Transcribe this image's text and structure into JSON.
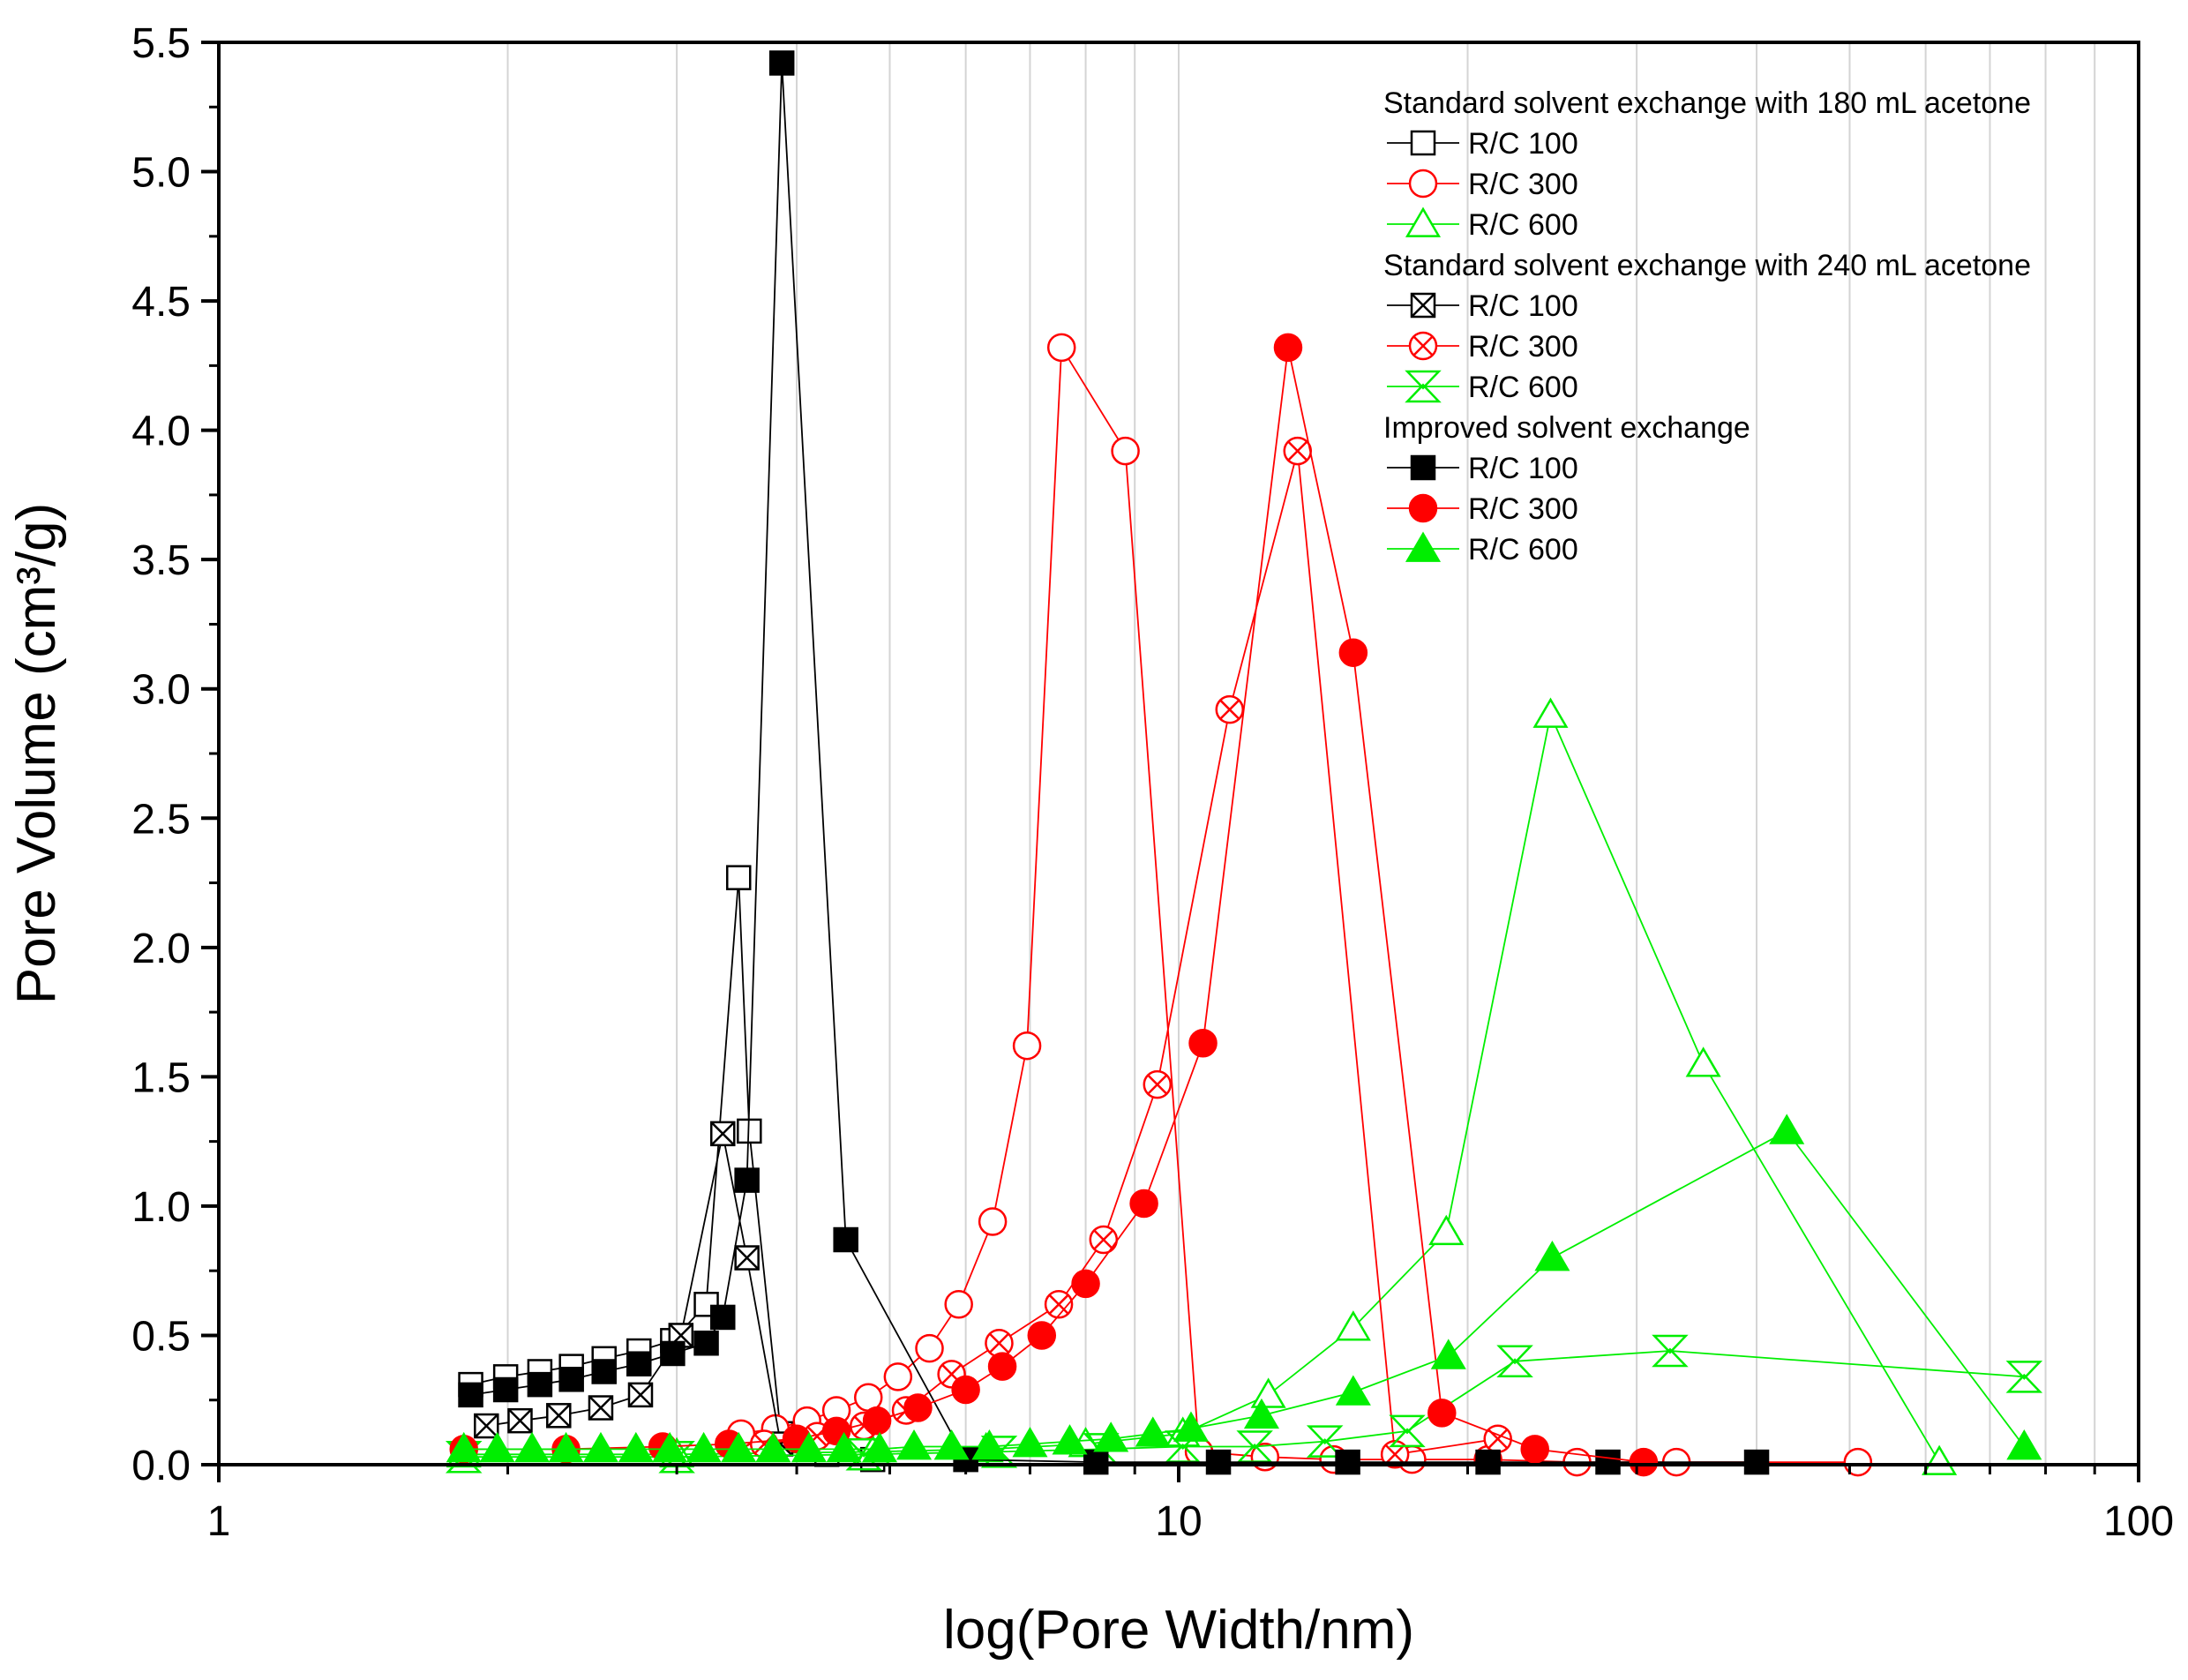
{
  "chart_data": {
    "type": "scatter",
    "title": "",
    "xlabel": "log(Pore Width/nm)",
    "ylabel": "Pore Volume (cm³/g)",
    "xscale": "log",
    "xlim": [
      1,
      100
    ],
    "ylim": [
      0,
      5.5
    ],
    "x_ticks": [
      1,
      10,
      100
    ],
    "x_tick_labels": [
      "1",
      "10",
      "100"
    ],
    "y_ticks": [
      0,
      0.5,
      1.0,
      1.5,
      2.0,
      2.5,
      3.0,
      3.5,
      4.0,
      4.5,
      5.0,
      5.5
    ],
    "y_tick_labels": [
      "0.0",
      "0.5",
      "1.0",
      "1.5",
      "2.0",
      "2.5",
      "3.0",
      "3.5",
      "4.0",
      "4.5",
      "5.0",
      "5.5"
    ],
    "grid": "vertical",
    "legend_position": "top-right",
    "legend_groups": [
      {
        "heading": "Standard solvent exchange with 180 mL acetone",
        "series_names": [
          "std180_rc100",
          "std180_rc300",
          "std180_rc600"
        ]
      },
      {
        "heading": "Standard solvent exchange with 240 mL acetone",
        "series_names": [
          "std240_rc100",
          "std240_rc300",
          "std240_rc600"
        ]
      },
      {
        "heading": "Improved solvent exchange",
        "series_names": [
          "imp_rc100",
          "imp_rc300",
          "imp_rc600"
        ]
      }
    ],
    "series": [
      {
        "name": "std180_rc100",
        "label": "R/C 100",
        "marker": "square-open",
        "color": "#000000",
        "x": [
          1.83,
          1.99,
          2.16,
          2.33,
          2.52,
          2.74,
          2.97,
          3.22,
          3.48,
          3.57,
          3.85,
          4.3,
          4.8
        ],
        "y": [
          0.31,
          0.34,
          0.36,
          0.38,
          0.41,
          0.44,
          0.48,
          0.62,
          2.27,
          1.29,
          0.12,
          0.04,
          0.02
        ]
      },
      {
        "name": "std180_rc300",
        "label": "R/C 300",
        "marker": "circle-open",
        "color": "#ff0000",
        "x": [
          3.5,
          3.8,
          4.1,
          4.4,
          4.75,
          5.1,
          5.5,
          5.9,
          6.4,
          6.95,
          7.55,
          8.8,
          10.5,
          12.3,
          14.5,
          17.5,
          21.0,
          26.0,
          33.0,
          51.0
        ],
        "y": [
          0.12,
          0.14,
          0.17,
          0.21,
          0.26,
          0.34,
          0.45,
          0.62,
          0.94,
          1.62,
          4.32,
          3.92,
          0.05,
          0.03,
          0.02,
          0.02,
          0.02,
          0.01,
          0.01,
          0.01
        ]
      },
      {
        "name": "std180_rc600",
        "label": "R/C 600",
        "marker": "triangle-open",
        "color": "#00ee00",
        "x": [
          1.8,
          3.0,
          4.8,
          6.3,
          8.0,
          10.1,
          12.4,
          15.2,
          19.0,
          24.4,
          35.2,
          62.0
        ],
        "y": [
          0.04,
          0.04,
          0.05,
          0.06,
          0.08,
          0.12,
          0.27,
          0.53,
          0.9,
          2.9,
          1.55,
          0.01
        ]
      },
      {
        "name": "std240_rc100",
        "label": "R/C 100",
        "marker": "square-x",
        "color": "#000000",
        "x": [
          1.9,
          2.06,
          2.26,
          2.5,
          2.75,
          3.03,
          3.35,
          3.55,
          3.85
        ],
        "y": [
          0.15,
          0.17,
          0.19,
          0.22,
          0.27,
          0.5,
          1.28,
          0.8,
          0.08
        ]
      },
      {
        "name": "std240_rc300",
        "label": "R/C 300",
        "marker": "circle-x",
        "color": "#ff0000",
        "x": [
          3.7,
          4.2,
          4.7,
          5.2,
          5.8,
          6.5,
          7.5,
          8.35,
          9.5,
          11.3,
          13.3,
          16.8,
          21.5
        ],
        "y": [
          0.08,
          0.11,
          0.15,
          0.21,
          0.35,
          0.47,
          0.62,
          0.87,
          1.47,
          2.92,
          3.92,
          0.04,
          0.1
        ]
      },
      {
        "name": "std240_rc600",
        "label": "R/C 600",
        "marker": "triangle-x",
        "color": "#00ee00",
        "x": [
          1.8,
          3.0,
          4.7,
          6.5,
          8.3,
          10.1,
          12.0,
          14.2,
          17.3,
          22.4,
          32.5,
          76.0
        ],
        "y": [
          0.03,
          0.03,
          0.04,
          0.05,
          0.06,
          0.07,
          0.07,
          0.09,
          0.13,
          0.4,
          0.44,
          0.34
        ]
      },
      {
        "name": "imp_rc100",
        "label": "R/C 100",
        "marker": "square-filled",
        "color": "#000000",
        "x": [
          1.83,
          1.99,
          2.16,
          2.33,
          2.52,
          2.74,
          2.97,
          3.22,
          3.35,
          3.55,
          3.86,
          4.5,
          6.0,
          8.2,
          11.0,
          15.0,
          21.0,
          28.0,
          40.0
        ],
        "y": [
          0.27,
          0.29,
          0.31,
          0.33,
          0.36,
          0.39,
          0.43,
          0.47,
          0.57,
          1.1,
          5.42,
          0.87,
          0.02,
          0.01,
          0.01,
          0.01,
          0.01,
          0.01,
          0.01
        ]
      },
      {
        "name": "imp_rc300",
        "label": "R/C 300",
        "marker": "circle-filled",
        "color": "#ff0000",
        "x": [
          1.8,
          2.3,
          2.9,
          3.4,
          4.0,
          4.4,
          4.85,
          5.35,
          6.0,
          6.55,
          7.2,
          8.0,
          9.2,
          10.6,
          13.0,
          15.2,
          18.8,
          23.5,
          30.5
        ],
        "y": [
          0.06,
          0.06,
          0.07,
          0.08,
          0.1,
          0.13,
          0.17,
          0.22,
          0.29,
          0.38,
          0.5,
          0.7,
          1.01,
          1.63,
          4.32,
          3.14,
          0.2,
          0.06,
          0.01
        ]
      },
      {
        "name": "imp_rc600",
        "label": "R/C 600",
        "marker": "triangle-filled",
        "color": "#00ee00",
        "x": [
          1.8,
          1.95,
          2.12,
          2.3,
          2.5,
          2.72,
          2.95,
          3.2,
          3.48,
          3.78,
          4.12,
          4.48,
          4.88,
          5.3,
          5.8,
          6.35,
          7.0,
          7.7,
          8.5,
          9.4,
          10.3,
          12.2,
          15.2,
          19.1,
          24.5,
          43.0,
          76.0
        ],
        "y": [
          0.06,
          0.06,
          0.06,
          0.06,
          0.06,
          0.06,
          0.06,
          0.06,
          0.06,
          0.06,
          0.06,
          0.06,
          0.06,
          0.07,
          0.07,
          0.07,
          0.08,
          0.09,
          0.1,
          0.12,
          0.14,
          0.19,
          0.28,
          0.42,
          0.8,
          1.29,
          0.07
        ]
      }
    ]
  }
}
